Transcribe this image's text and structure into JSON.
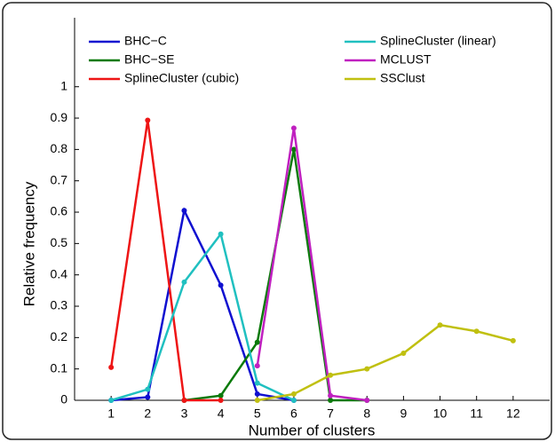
{
  "chart_data": {
    "type": "line",
    "xlabel": "Number of clusters",
    "ylabel": "Relative frequency",
    "x": [
      1,
      2,
      3,
      4,
      5,
      6,
      7,
      8,
      9,
      10,
      11,
      12
    ],
    "xlim": [
      0,
      13
    ],
    "xticks": [
      1,
      2,
      3,
      4,
      5,
      6,
      7,
      8,
      9,
      10,
      11,
      12
    ],
    "ylim": [
      0,
      1.22
    ],
    "yticks": [
      0,
      0.1,
      0.2,
      0.3,
      0.4,
      0.5,
      0.6,
      0.7,
      0.8,
      0.9,
      1
    ],
    "series": [
      {
        "name": "BHC−C",
        "color": "#1010d0",
        "values": [
          0,
          0.01,
          0.605,
          0.367,
          0.02,
          0,
          null,
          null,
          null,
          null,
          null,
          null
        ]
      },
      {
        "name": "BHC−SE",
        "color": "#0a7a0a",
        "values": [
          null,
          null,
          0,
          0.015,
          0.185,
          0.8,
          0,
          0,
          null,
          null,
          null,
          null
        ]
      },
      {
        "name": "SplineCluster (cubic)",
        "color": "#ee1515",
        "values": [
          0.105,
          0.893,
          0,
          0,
          null,
          null,
          null,
          null,
          null,
          null,
          null,
          null
        ]
      },
      {
        "name": "SplineCluster (linear)",
        "color": "#20c0c0",
        "values": [
          0,
          0.035,
          0.377,
          0.53,
          0.055,
          0,
          null,
          null,
          null,
          null,
          null,
          null
        ]
      },
      {
        "name": "MCLUST",
        "color": "#c020c0",
        "values": [
          null,
          null,
          null,
          null,
          0.11,
          0.868,
          0.015,
          0,
          null,
          null,
          null,
          null
        ]
      },
      {
        "name": "SSClust",
        "color": "#c0c010",
        "values": [
          null,
          null,
          null,
          null,
          0,
          0.02,
          0.08,
          0.1,
          0.15,
          0.24,
          0.22,
          0.19
        ]
      }
    ]
  }
}
